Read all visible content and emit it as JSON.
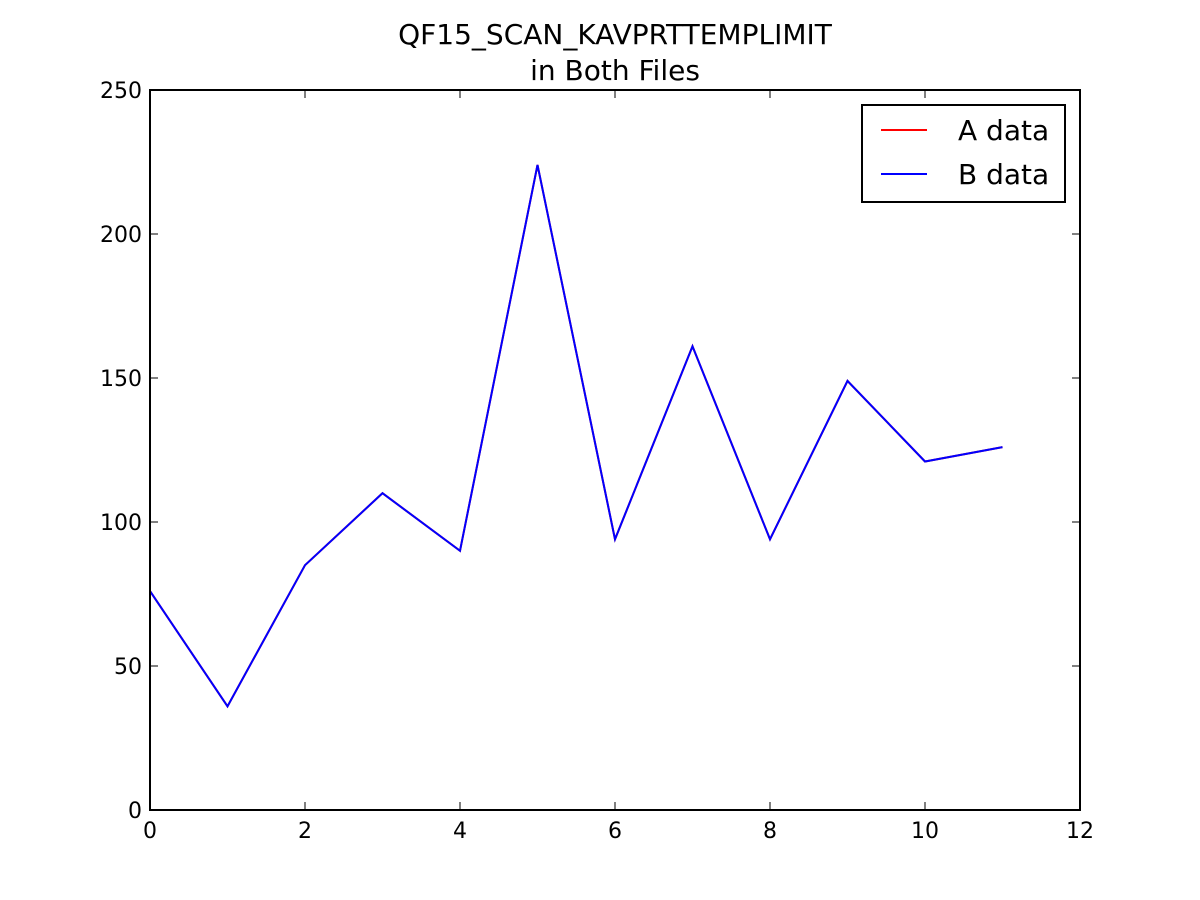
{
  "chart_data": {
    "type": "line",
    "title": "QF15_SCAN_KAVPRTTEMPLIMIT",
    "subtitle": "in Both Files",
    "xlabel": "",
    "ylabel": "",
    "xlim": [
      0,
      12
    ],
    "ylim": [
      0,
      250
    ],
    "x_ticks": [
      0,
      2,
      4,
      6,
      8,
      10,
      12
    ],
    "y_ticks": [
      0,
      50,
      100,
      150,
      200,
      250
    ],
    "grid": false,
    "legend_position": "top-right",
    "series": [
      {
        "name": "A data",
        "color": "#ff0000",
        "x": [
          0,
          1,
          2,
          3,
          4,
          5,
          6,
          7,
          8,
          9,
          10,
          11
        ],
        "y": [
          76,
          36,
          85,
          110,
          90,
          224,
          94,
          161,
          94,
          149,
          121,
          126
        ]
      },
      {
        "name": "B data",
        "color": "#0000ff",
        "x": [
          0,
          1,
          2,
          3,
          4,
          5,
          6,
          7,
          8,
          9,
          10,
          11
        ],
        "y": [
          76,
          36,
          85,
          110,
          90,
          224,
          94,
          161,
          94,
          149,
          121,
          126
        ]
      }
    ]
  }
}
